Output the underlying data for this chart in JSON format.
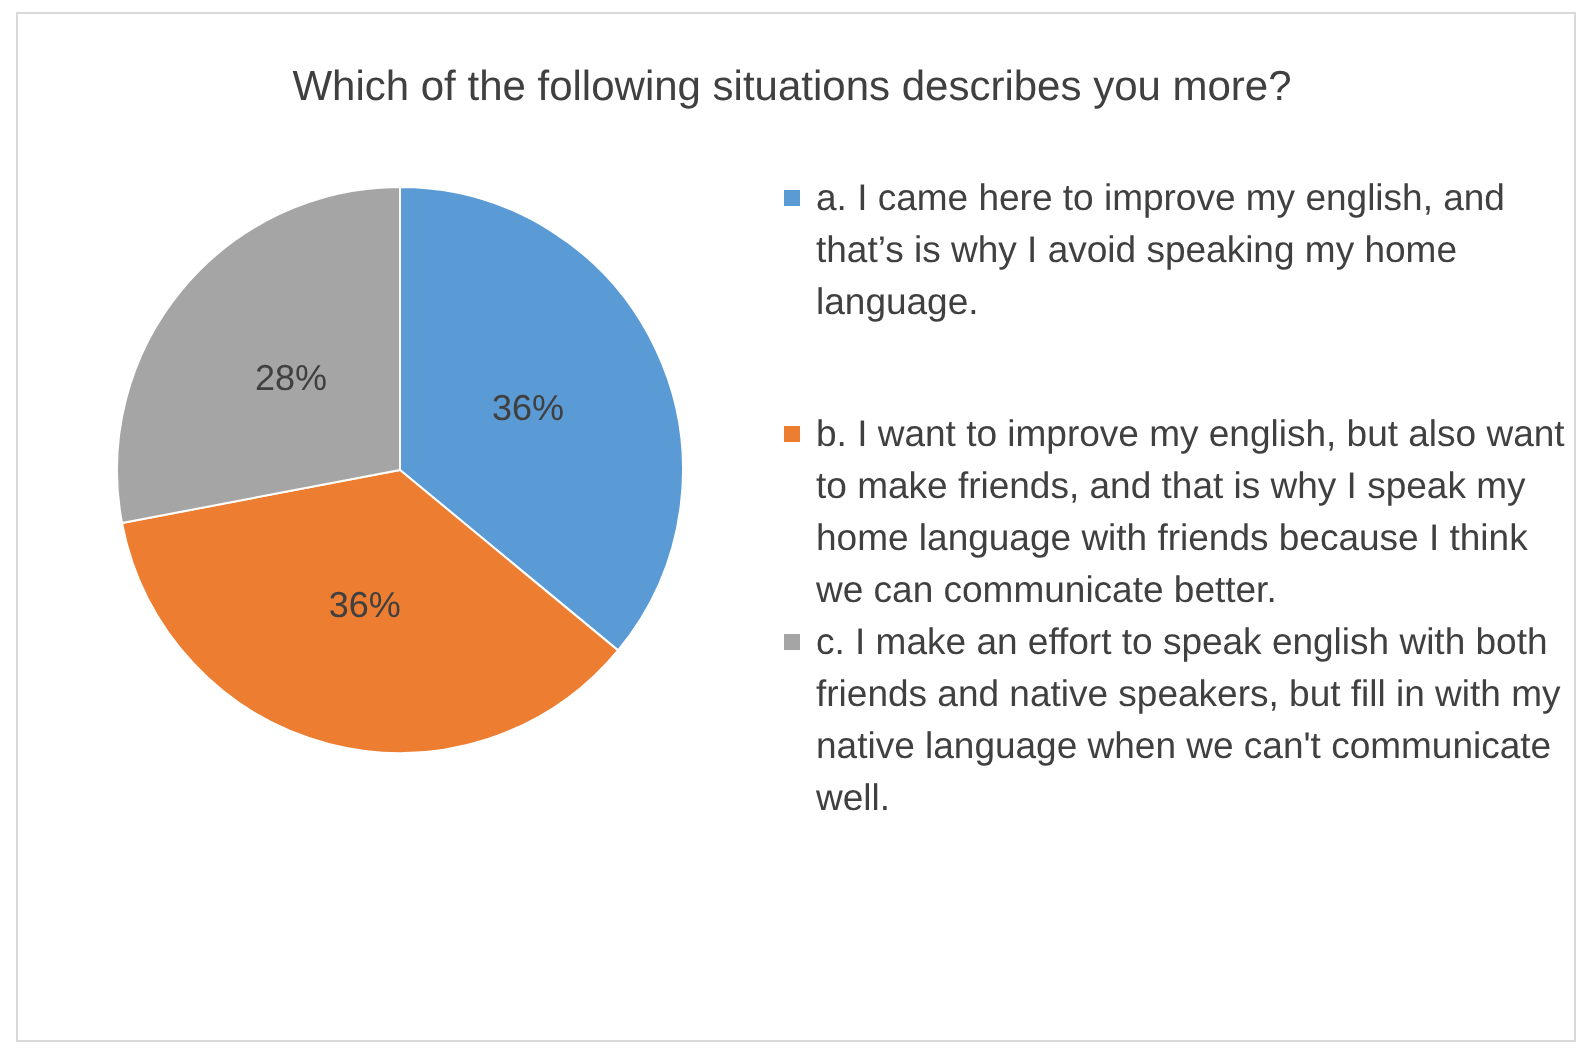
{
  "chart_data": {
    "type": "pie",
    "title": "Which of the following situations describes you more?",
    "categories": [
      "a. I came here to improve my english, and that’s is why I avoid speaking my home language.",
      "b. I want to improve my english, but also want to make friends, and that is why I speak my home language with friends because I think we can communicate better.",
      "c. I make an effort to speak english with both friends and native speakers, but fill in with my native language when we can't communicate well."
    ],
    "values": [
      36,
      36,
      28
    ],
    "colors": [
      "#5b9bd5",
      "#ed7d31",
      "#a5a5a5"
    ],
    "value_labels": [
      "36%",
      "36%",
      "28%"
    ],
    "legend": "right"
  }
}
